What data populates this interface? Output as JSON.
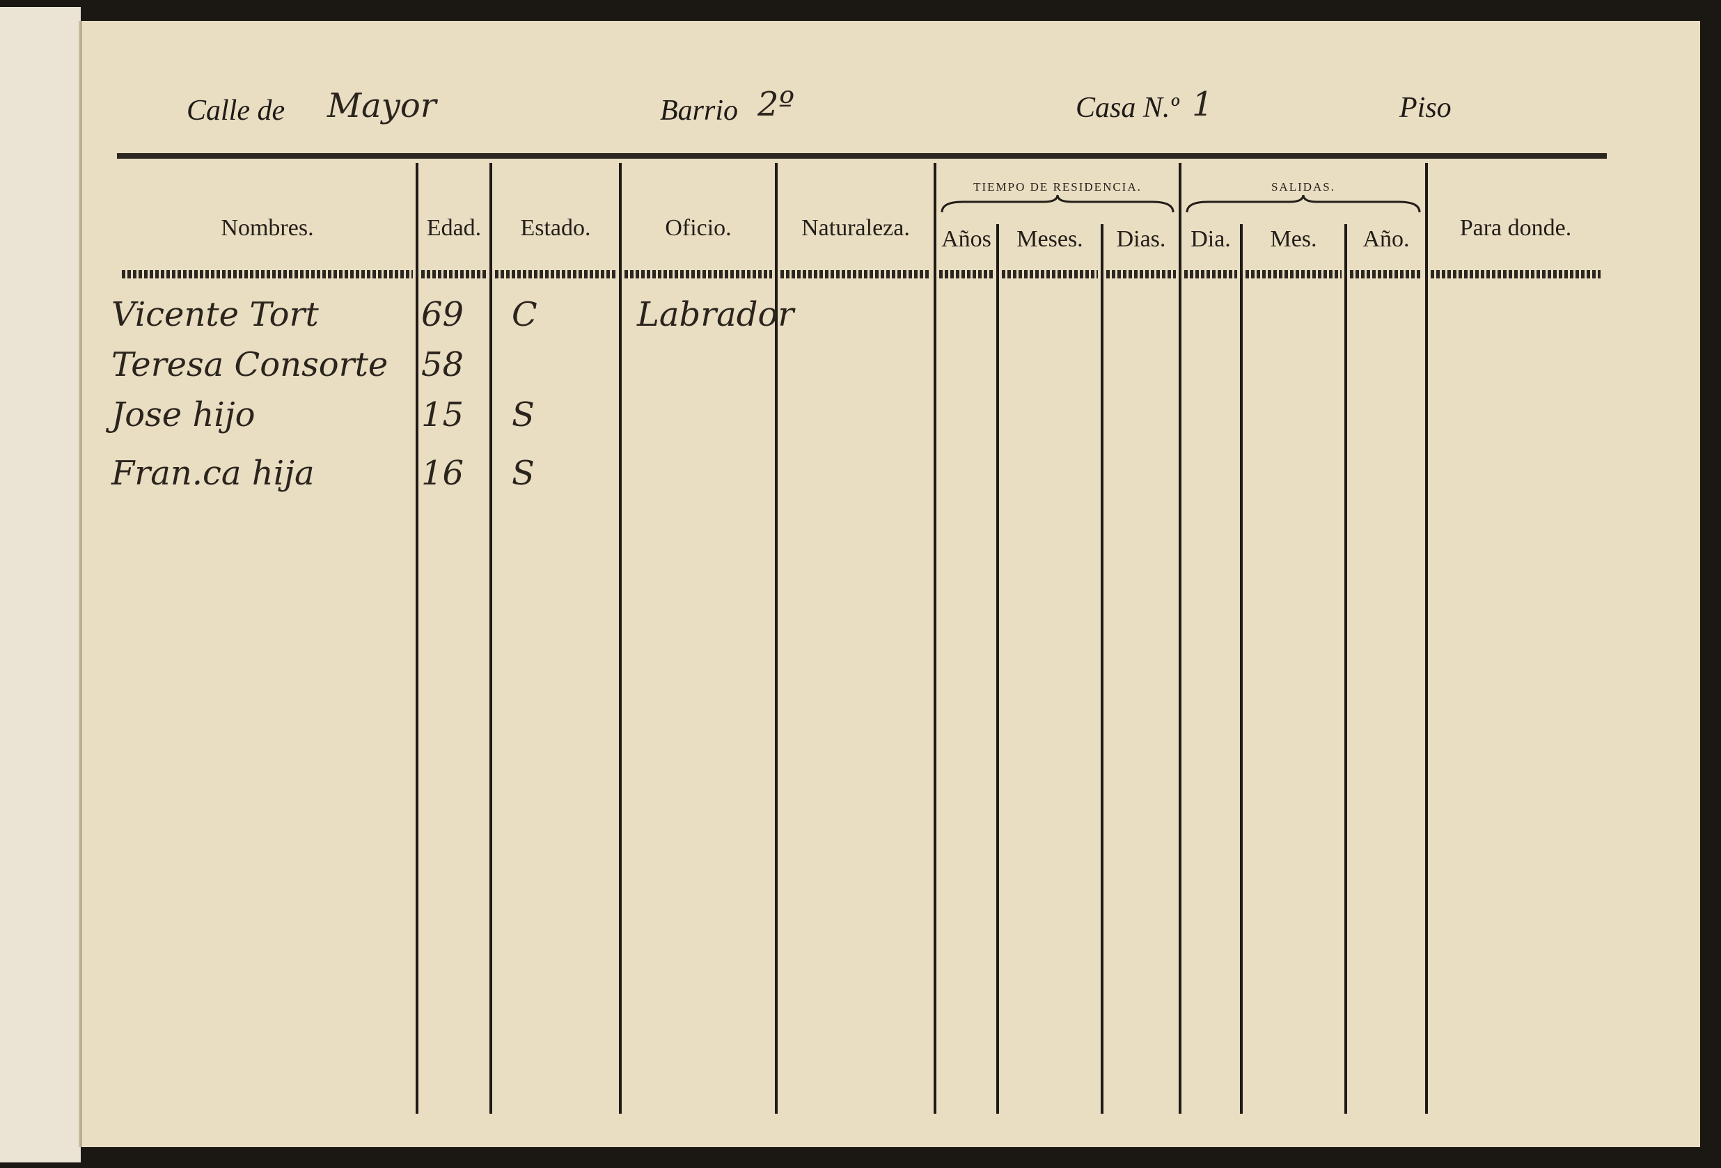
{
  "header": {
    "street_label": "Calle de",
    "street": "Mayor",
    "barrio_label": "Barrio",
    "barrio": "2º",
    "casa_label": "Casa N.º",
    "casa": "1",
    "piso_label": "Piso"
  },
  "table": {
    "columns": [
      {
        "label": "Nombres."
      },
      {
        "label": "Edad."
      },
      {
        "label": "Estado."
      },
      {
        "label": "Oficio."
      },
      {
        "label": "Naturaleza."
      },
      {
        "label": "Años"
      },
      {
        "label": "Meses."
      },
      {
        "label": "Dias."
      },
      {
        "label": "Dia."
      },
      {
        "label": "Mes."
      },
      {
        "label": "Año."
      },
      {
        "label": "Para donde."
      }
    ],
    "groups": [
      {
        "label": "TIEMPO DE RESIDENCIA."
      },
      {
        "label": "SALIDAS."
      }
    ],
    "rows": [
      {
        "name": "Vicente Tort",
        "age": 69,
        "estado": "C",
        "oficio": "Labrador"
      },
      {
        "name": "Teresa Consorte",
        "age": 58
      },
      {
        "name": "Jose hijo",
        "age": 15,
        "estado": "S"
      },
      {
        "name": "Fran.ca hija",
        "age": 16,
        "estado": "S"
      }
    ]
  }
}
